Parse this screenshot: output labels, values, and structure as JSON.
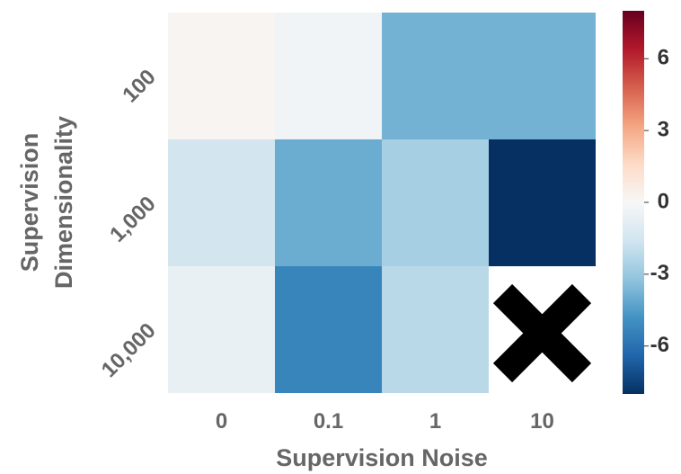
{
  "chart_data": {
    "type": "heatmap",
    "title": "",
    "xlabel": "Supervision Noise",
    "ylabel": "Supervision\nDimensionality",
    "x_categories": [
      "0",
      "0.1",
      "1",
      "10"
    ],
    "y_categories": [
      "100",
      "1,000",
      "10,000"
    ],
    "values": [
      [
        0.2,
        -0.3,
        -3.8,
        -3.8
      ],
      [
        -1.5,
        -4.0,
        -2.7,
        -8.0
      ],
      [
        -0.6,
        -5.3,
        -2.2,
        null
      ]
    ],
    "missing_marker": "✕",
    "colorbar": {
      "min": -8,
      "max": 8,
      "ticks": [
        "6",
        "3",
        "0",
        "-3",
        "-6"
      ],
      "tick_values": [
        6,
        3,
        0,
        -3,
        -6
      ],
      "colormap": "RdBu_r"
    },
    "colors": {
      "text": "#666666",
      "marker": "#000000"
    }
  }
}
